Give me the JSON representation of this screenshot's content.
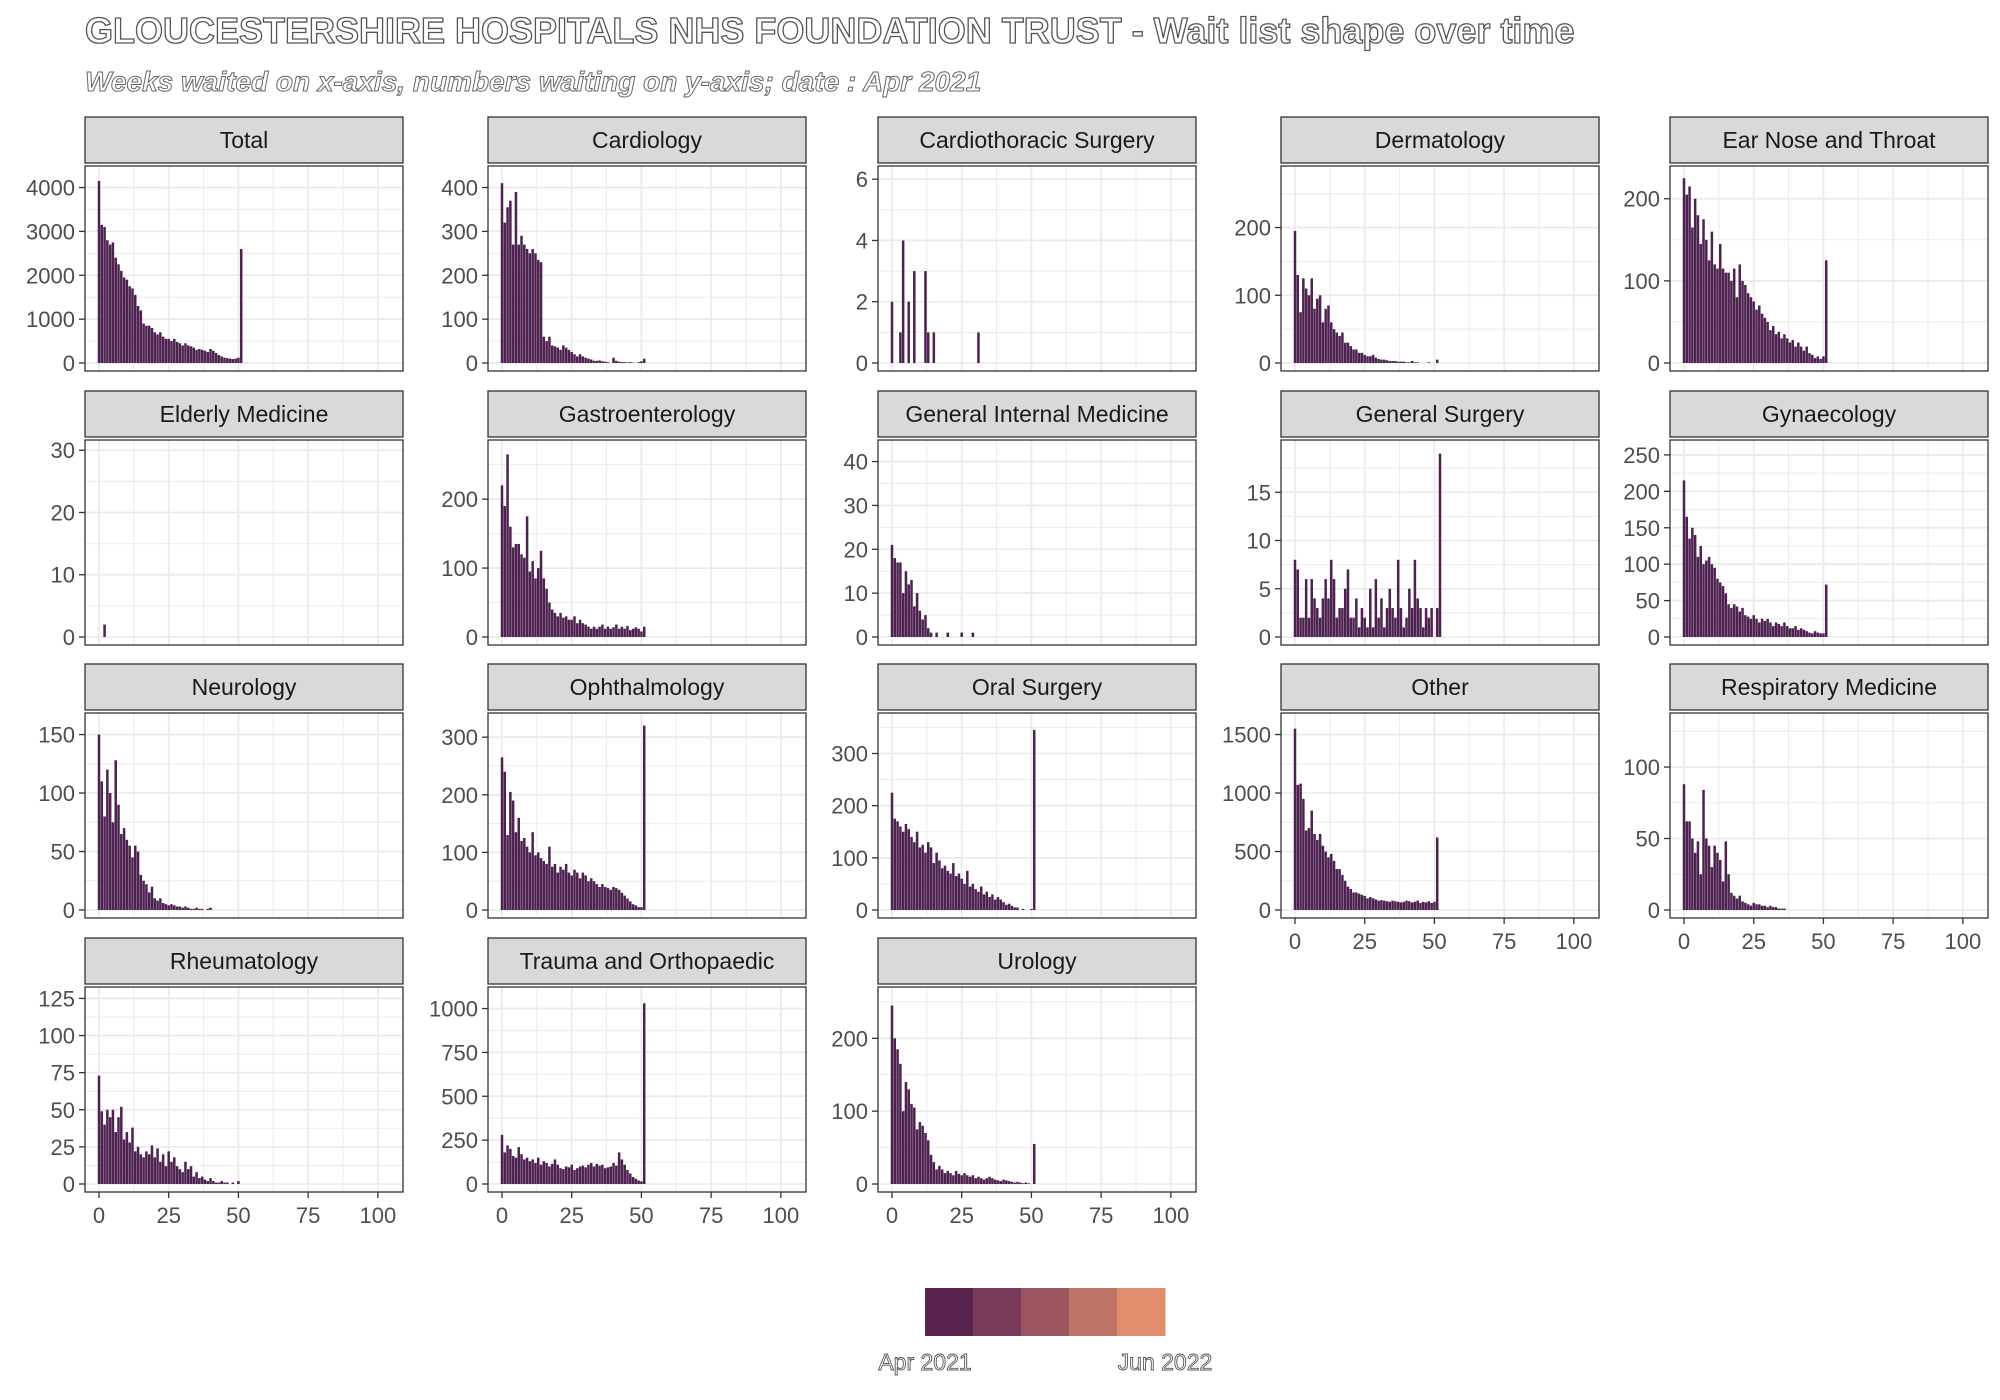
{
  "title": "GLOUCESTERSHIRE HOSPITALS NHS FOUNDATION TRUST - Wait list shape over time",
  "subtitle": "Weeks waited on x-axis, numbers waiting on y-axis; date : Apr 2021",
  "legend": {
    "start_label": "Apr 2021",
    "end_label": "Jun 2022",
    "colors": [
      "#5a2450",
      "#7a3a5a",
      "#9c555e",
      "#be7466",
      "#e08e6e"
    ]
  },
  "colors": {
    "bar": "#4e2250",
    "strip_bg": "#d9d9d9",
    "grid": "#ebebeb",
    "border": "#333333"
  },
  "chart_data": [
    {
      "type": "bar",
      "title": "Total",
      "ylim": [
        0,
        4400
      ],
      "yticks": [
        0,
        1000,
        2000,
        3000,
        4000
      ],
      "xlim": [
        0,
        104
      ],
      "xticks": [
        0,
        25,
        50,
        75,
        100
      ],
      "values": [
        4150,
        3150,
        3100,
        2800,
        2700,
        2750,
        2400,
        2250,
        2100,
        1950,
        1900,
        1750,
        1700,
        1550,
        1300,
        1200,
        900,
        850,
        850,
        800,
        700,
        650,
        700,
        600,
        550,
        550,
        500,
        550,
        480,
        450,
        400,
        450,
        400,
        380,
        350,
        300,
        320,
        300,
        280,
        250,
        320,
        280,
        230,
        180,
        150,
        120,
        110,
        100,
        90,
        100,
        120,
        2600
      ]
    },
    {
      "type": "bar",
      "title": "Cardiology",
      "ylim": [
        0,
        440
      ],
      "yticks": [
        0,
        100,
        200,
        300,
        400
      ],
      "xlim": [
        0,
        104
      ],
      "xticks": [
        0,
        25,
        50,
        75,
        100
      ],
      "values": [
        410,
        320,
        355,
        370,
        270,
        390,
        270,
        290,
        270,
        260,
        250,
        260,
        250,
        235,
        230,
        60,
        50,
        60,
        40,
        38,
        35,
        30,
        40,
        35,
        30,
        25,
        20,
        15,
        20,
        15,
        12,
        10,
        8,
        5,
        5,
        6,
        4,
        3,
        2,
        0,
        12,
        5,
        3,
        2,
        2,
        1,
        2,
        1,
        0,
        2,
        4,
        10
      ]
    },
    {
      "type": "bar",
      "title": "Cardiothoracic Surgery",
      "ylim": [
        0,
        6.3
      ],
      "yticks": [
        0,
        2,
        4,
        6
      ],
      "xlim": [
        0,
        104
      ],
      "xticks": [
        0,
        25,
        50,
        75,
        100
      ],
      "values": [
        2,
        0,
        0,
        1,
        4,
        0,
        2,
        0,
        3,
        0,
        0,
        0,
        3,
        1,
        0,
        1,
        0,
        0,
        0,
        0,
        0,
        0,
        0,
        0,
        0,
        0,
        0,
        0,
        0,
        0,
        0,
        1
      ]
    },
    {
      "type": "bar",
      "title": "Dermatology",
      "ylim": [
        0,
        285
      ],
      "yticks": [
        0,
        100,
        200
      ],
      "xlim": [
        0,
        104
      ],
      "xticks": [
        0,
        25,
        50,
        75,
        100
      ],
      "values": [
        195,
        130,
        75,
        125,
        110,
        100,
        125,
        80,
        95,
        100,
        60,
        80,
        85,
        60,
        50,
        45,
        40,
        45,
        30,
        30,
        25,
        20,
        20,
        15,
        15,
        12,
        10,
        10,
        12,
        8,
        6,
        5,
        5,
        4,
        3,
        3,
        3,
        2,
        2,
        2,
        1,
        1,
        3,
        1,
        1,
        0,
        0,
        0,
        1,
        0,
        0,
        5
      ]
    },
    {
      "type": "bar",
      "title": "Ear Nose and Throat",
      "ylim": [
        0,
        235
      ],
      "yticks": [
        0,
        100,
        200
      ],
      "xlim": [
        0,
        104
      ],
      "xticks": [
        0,
        25,
        50,
        75,
        100
      ],
      "values": [
        225,
        205,
        215,
        165,
        200,
        180,
        145,
        175,
        150,
        125,
        160,
        120,
        115,
        145,
        115,
        110,
        110,
        100,
        115,
        80,
        120,
        100,
        95,
        85,
        80,
        75,
        65,
        70,
        60,
        55,
        50,
        40,
        45,
        35,
        38,
        30,
        35,
        30,
        25,
        28,
        20,
        25,
        20,
        15,
        20,
        12,
        10,
        6,
        8,
        5,
        8,
        125
      ]
    },
    {
      "type": "bar",
      "title": "Elderly Medicine",
      "ylim": [
        0,
        31
      ],
      "yticks": [
        0,
        10,
        20,
        30
      ],
      "xlim": [
        0,
        104
      ],
      "xticks": [
        0,
        25,
        50,
        75,
        100
      ],
      "values": [
        0,
        0,
        2
      ]
    },
    {
      "type": "bar",
      "title": "Gastroenterology",
      "ylim": [
        0,
        280
      ],
      "yticks": [
        0,
        100,
        200
      ],
      "xlim": [
        0,
        104
      ],
      "xticks": [
        0,
        25,
        50,
        75,
        100
      ],
      "values": [
        220,
        190,
        265,
        160,
        130,
        135,
        135,
        120,
        115,
        175,
        95,
        110,
        85,
        100,
        125,
        85,
        70,
        50,
        40,
        35,
        30,
        35,
        28,
        30,
        25,
        25,
        30,
        20,
        25,
        20,
        18,
        15,
        12,
        15,
        12,
        15,
        18,
        12,
        15,
        12,
        14,
        18,
        12,
        15,
        12,
        16,
        10,
        12,
        14,
        12,
        8,
        15
      ]
    },
    {
      "type": "bar",
      "title": "General Internal Medicine",
      "ylim": [
        0,
        44
      ],
      "yticks": [
        0,
        10,
        20,
        30,
        40
      ],
      "xlim": [
        0,
        104
      ],
      "xticks": [
        0,
        25,
        50,
        75,
        100
      ],
      "values": [
        21,
        18,
        17,
        17,
        10,
        15,
        12,
        13,
        7,
        10,
        6,
        4,
        5,
        2,
        1,
        0,
        1,
        0,
        0,
        0,
        1,
        0,
        0,
        0,
        0,
        1,
        0,
        0,
        0,
        1
      ]
    },
    {
      "type": "bar",
      "title": "General Surgery",
      "ylim": [
        0,
        20
      ],
      "yticks": [
        0,
        5,
        10,
        15
      ],
      "xlim": [
        0,
        104
      ],
      "xticks": [
        0,
        25,
        50,
        75,
        100
      ],
      "values": [
        8,
        7,
        2,
        2,
        6,
        2,
        6,
        4,
        3,
        2,
        4,
        6,
        4,
        8,
        6,
        2,
        3,
        3,
        5,
        7,
        2,
        2,
        4,
        1,
        3,
        2,
        1,
        5,
        1,
        6,
        2,
        4,
        1,
        3,
        5,
        3,
        2,
        8,
        3,
        1,
        2,
        5,
        3,
        8,
        4,
        3,
        1,
        3,
        2,
        3,
        0,
        3,
        19
      ]
    },
    {
      "type": "bar",
      "title": "Gynaecology",
      "ylim": [
        0,
        265
      ],
      "yticks": [
        0,
        50,
        100,
        150,
        200,
        250
      ],
      "xlim": [
        0,
        104
      ],
      "xticks": [
        0,
        25,
        50,
        75,
        100
      ],
      "values": [
        215,
        165,
        135,
        150,
        140,
        110,
        125,
        100,
        105,
        110,
        100,
        95,
        80,
        75,
        70,
        60,
        45,
        40,
        45,
        42,
        35,
        40,
        30,
        28,
        25,
        30,
        25,
        20,
        25,
        22,
        25,
        20,
        15,
        20,
        18,
        15,
        20,
        15,
        12,
        12,
        15,
        10,
        12,
        10,
        8,
        6,
        5,
        8,
        6,
        5,
        5,
        72
      ]
    },
    {
      "type": "bar",
      "title": "Neurology",
      "ylim": [
        0,
        165
      ],
      "yticks": [
        0,
        50,
        100,
        150
      ],
      "xlim": [
        0,
        104
      ],
      "xticks": [
        0,
        25,
        50,
        75,
        100
      ],
      "values": [
        150,
        110,
        80,
        120,
        100,
        75,
        128,
        90,
        65,
        70,
        60,
        55,
        45,
        55,
        50,
        30,
        25,
        22,
        15,
        20,
        10,
        8,
        10,
        6,
        5,
        4,
        5,
        4,
        3,
        3,
        2,
        3,
        2,
        1,
        1,
        2,
        1,
        1,
        0,
        1,
        2
      ]
    },
    {
      "type": "bar",
      "title": "Ophthalmology",
      "ylim": [
        0,
        335
      ],
      "yticks": [
        0,
        100,
        200,
        300
      ],
      "xlim": [
        0,
        104
      ],
      "xticks": [
        0,
        25,
        50,
        75,
        100
      ],
      "values": [
        265,
        240,
        130,
        205,
        190,
        135,
        160,
        120,
        125,
        110,
        100,
        135,
        95,
        100,
        90,
        85,
        80,
        110,
        75,
        80,
        65,
        75,
        70,
        80,
        65,
        60,
        70,
        65,
        55,
        65,
        60,
        50,
        55,
        50,
        45,
        40,
        45,
        40,
        38,
        35,
        40,
        38,
        35,
        30,
        25,
        20,
        15,
        10,
        8,
        5,
        5,
        320
      ]
    },
    {
      "type": "bar",
      "title": "Oral Surgery",
      "ylim": [
        0,
        370
      ],
      "yticks": [
        0,
        100,
        200,
        300
      ],
      "xlim": [
        0,
        104
      ],
      "xticks": [
        0,
        25,
        50,
        75,
        100
      ],
      "values": [
        225,
        175,
        170,
        160,
        150,
        165,
        155,
        140,
        130,
        150,
        120,
        125,
        110,
        130,
        120,
        90,
        110,
        95,
        80,
        85,
        75,
        70,
        90,
        65,
        70,
        60,
        50,
        75,
        45,
        50,
        40,
        35,
        45,
        30,
        35,
        25,
        30,
        20,
        25,
        20,
        15,
        10,
        12,
        8,
        5,
        5,
        0,
        2,
        0,
        0,
        2,
        345
      ]
    },
    {
      "type": "bar",
      "title": "Other",
      "ylim": [
        0,
        1650
      ],
      "yticks": [
        0,
        500,
        1000,
        1500
      ],
      "xlim": [
        0,
        104
      ],
      "xticks": [
        0,
        25,
        50,
        75,
        100
      ],
      "values": [
        1550,
        1070,
        1080,
        950,
        680,
        700,
        850,
        650,
        600,
        650,
        550,
        500,
        450,
        480,
        420,
        350,
        350,
        300,
        250,
        200,
        180,
        150,
        150,
        140,
        130,
        120,
        100,
        110,
        100,
        90,
        80,
        85,
        80,
        75,
        70,
        80,
        75,
        70,
        65,
        70,
        80,
        75,
        65,
        70,
        80,
        60,
        70,
        65,
        75,
        60,
        70,
        620
      ]
    },
    {
      "type": "bar",
      "title": "Respiratory Medicine",
      "ylim": [
        0,
        135
      ],
      "yticks": [
        0,
        50,
        100
      ],
      "xlim": [
        0,
        104
      ],
      "xticks": [
        0,
        25,
        50,
        75,
        100
      ],
      "values": [
        88,
        62,
        62,
        50,
        40,
        48,
        25,
        84,
        50,
        45,
        30,
        45,
        40,
        35,
        20,
        48,
        25,
        12,
        10,
        8,
        10,
        6,
        5,
        4,
        3,
        5,
        4,
        4,
        3,
        3,
        2,
        3,
        2,
        2,
        1,
        1,
        1
      ]
    },
    {
      "type": "bar",
      "title": "Rheumatology",
      "ylim": [
        0,
        130
      ],
      "yticks": [
        0,
        25,
        50,
        75,
        100,
        125
      ],
      "xlim": [
        0,
        104
      ],
      "xticks": [
        0,
        25,
        50,
        75,
        100
      ],
      "values": [
        73,
        49,
        40,
        50,
        45,
        50,
        35,
        45,
        52,
        30,
        35,
        28,
        38,
        22,
        25,
        20,
        18,
        22,
        20,
        26,
        18,
        24,
        15,
        20,
        12,
        22,
        15,
        18,
        12,
        10,
        8,
        15,
        10,
        12,
        5,
        8,
        4,
        5,
        3,
        2,
        4,
        2,
        1,
        1,
        2,
        1,
        1,
        0,
        1,
        0,
        2
      ]
    },
    {
      "type": "bar",
      "title": "Trauma and Orthopaedic",
      "ylim": [
        0,
        1100
      ],
      "yticks": [
        0,
        250,
        500,
        750,
        1000
      ],
      "xlim": [
        0,
        104
      ],
      "xticks": [
        0,
        25,
        50,
        75,
        100
      ],
      "values": [
        280,
        180,
        220,
        200,
        160,
        150,
        210,
        170,
        140,
        150,
        130,
        140,
        120,
        150,
        110,
        130,
        120,
        100,
        115,
        140,
        110,
        90,
        85,
        100,
        95,
        110,
        80,
        90,
        100,
        105,
        95,
        110,
        120,
        100,
        115,
        105,
        110,
        90,
        95,
        100,
        120,
        105,
        180,
        140,
        110,
        80,
        60,
        40,
        30,
        20,
        15,
        1030
      ]
    },
    {
      "type": "bar",
      "title": "Urology",
      "ylim": [
        0,
        265
      ],
      "yticks": [
        0,
        100,
        200
      ],
      "xlim": [
        0,
        104
      ],
      "xticks": [
        0,
        25,
        50,
        75,
        100
      ],
      "values": [
        245,
        200,
        185,
        165,
        100,
        140,
        130,
        110,
        105,
        75,
        85,
        80,
        70,
        60,
        40,
        30,
        20,
        25,
        20,
        15,
        18,
        15,
        12,
        18,
        14,
        12,
        15,
        12,
        10,
        12,
        8,
        10,
        8,
        6,
        8,
        10,
        8,
        6,
        5,
        4,
        6,
        5,
        4,
        3,
        2,
        3,
        2,
        1,
        2,
        1,
        0,
        55
      ]
    }
  ]
}
